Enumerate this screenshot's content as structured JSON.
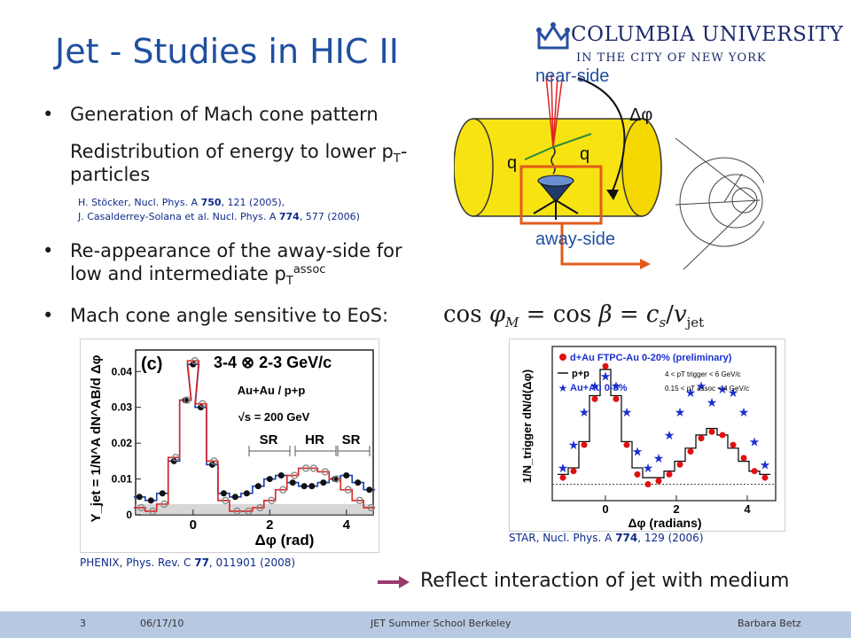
{
  "slide": {
    "title": "Jet - Studies in HIC II",
    "logo": {
      "name": "COLUMBIA UNIVERSITY",
      "sub": "IN THE CITY OF NEW YORK"
    },
    "bullet1": "Generation of Mach cone pattern",
    "bullet1_line2a": "Redistribution of energy to lower p",
    "bullet1_sub": "T",
    "bullet1_line2b": "-",
    "bullet1_line3": "particles",
    "ref1_a": "H. Stöcker, Nucl. Phys. A ",
    "ref1_vol": "750",
    "ref1_b": ", 121 (2005),",
    "ref2_a": "J. Casalderrey-Solana et al. Nucl. Phys. A ",
    "ref2_vol": "774",
    "ref2_b": ", 577 (2006)",
    "bullet2_line1": "Re-appearance of the away-side for",
    "bullet2_line2": "low and intermediate p",
    "bullet2_sub": "T",
    "bullet2_sup": "assoc",
    "bullet3": "Mach cone angle sensitive to EoS:",
    "equation": "cos φ_M = cos β = c_s/v_jet",
    "diagram": {
      "near": "near-side",
      "away": "away-side",
      "dphi": "Δφ",
      "q": "q"
    },
    "phenix_ref_a": "PHENIX, Phys. Rev. C ",
    "phenix_ref_vol": "77",
    "phenix_ref_b": ", 011901 (2008)",
    "star_ref_a": "STAR, Nucl. Phys. A ",
    "star_ref_vol": "774",
    "star_ref_b": ", 129 (2006)",
    "conclusion": "Reflect interaction of jet with medium",
    "footer": {
      "page": "3",
      "date": "06/17/10",
      "event": "JET Summer School Berkeley",
      "author": "Barbara Betz"
    }
  },
  "chart_data": [
    {
      "type": "line",
      "panel": "(c)",
      "title": "3-4 ⊗ 2-3 GeV/c",
      "ylabel": "Y_jet = 1/N^A dN^AB/d Δφ",
      "xlabel": "Δφ (rad)",
      "xticks": [
        "0",
        "2",
        "4"
      ],
      "yticks": [
        "0",
        "0.01",
        "0.02",
        "0.03",
        "0.04"
      ],
      "annotations": [
        "Au+Au / p+p",
        "√s = 200 GeV",
        "SR",
        "HR",
        "SR"
      ],
      "x": [
        -1.4,
        -1.1,
        -0.8,
        -0.5,
        -0.2,
        0.0,
        0.2,
        0.5,
        0.8,
        1.1,
        1.4,
        1.7,
        2.0,
        2.3,
        2.6,
        2.9,
        3.1,
        3.4,
        3.7,
        4.0,
        4.3,
        4.6
      ],
      "series": [
        {
          "name": "Au+Au",
          "values": [
            0.005,
            0.004,
            0.006,
            0.015,
            0.032,
            0.042,
            0.03,
            0.014,
            0.006,
            0.005,
            0.006,
            0.008,
            0.01,
            0.011,
            0.009,
            0.008,
            0.008,
            0.009,
            0.01,
            0.011,
            0.009,
            0.007
          ]
        },
        {
          "name": "p+p",
          "values": [
            0.002,
            0.001,
            0.003,
            0.016,
            0.032,
            0.043,
            0.031,
            0.015,
            0.004,
            0.001,
            0.001,
            0.002,
            0.004,
            0.007,
            0.011,
            0.013,
            0.013,
            0.012,
            0.01,
            0.007,
            0.004,
            0.002
          ]
        }
      ],
      "xlim": [
        -1.5,
        4.7
      ],
      "ylim": [
        0,
        0.046
      ]
    },
    {
      "type": "scatter",
      "legend": [
        "d+Au FTPC-Au 0-20% (preliminary)",
        "p+p",
        "Au+Au 0-5%"
      ],
      "cuts": [
        "4 < pT trigger < 6 GeV/c",
        "0.15 < pT assoc < 4 GeV/c"
      ],
      "xlabel": "Δφ (radians)",
      "ylabel": "1/N_trigger dN/d(Δφ)",
      "xticks": [
        "0",
        "2",
        "4"
      ],
      "x": [
        -1.2,
        -0.9,
        -0.6,
        -0.3,
        0.0,
        0.3,
        0.6,
        0.9,
        1.2,
        1.5,
        1.8,
        2.1,
        2.4,
        2.7,
        3.0,
        3.3,
        3.6,
        3.9,
        4.2,
        4.5
      ],
      "series": [
        {
          "name": "d+Au FTPC-Au 0-20% (preliminary)",
          "values": [
            0.2,
            0.4,
            1.2,
            2.6,
            3.6,
            2.6,
            1.2,
            0.3,
            0.0,
            0.1,
            0.3,
            0.6,
            1.0,
            1.4,
            1.6,
            1.5,
            1.2,
            0.8,
            0.4,
            0.2
          ]
        },
        {
          "name": "p+p",
          "values": [
            0.3,
            0.5,
            1.3,
            2.7,
            3.5,
            2.7,
            1.3,
            0.5,
            0.2,
            0.2,
            0.4,
            0.7,
            1.1,
            1.5,
            1.7,
            1.5,
            1.1,
            0.7,
            0.4,
            0.3
          ]
        },
        {
          "name": "Au+Au 0-5%",
          "values": [
            0.5,
            1.2,
            2.2,
            3.0,
            3.3,
            3.0,
            2.2,
            1.0,
            0.5,
            0.8,
            1.5,
            2.2,
            2.8,
            3.0,
            2.5,
            2.9,
            2.8,
            2.2,
            1.3,
            0.6
          ]
        }
      ],
      "xlim": [
        -1.5,
        4.8
      ],
      "ylim": [
        -0.5,
        4.2
      ]
    }
  ]
}
